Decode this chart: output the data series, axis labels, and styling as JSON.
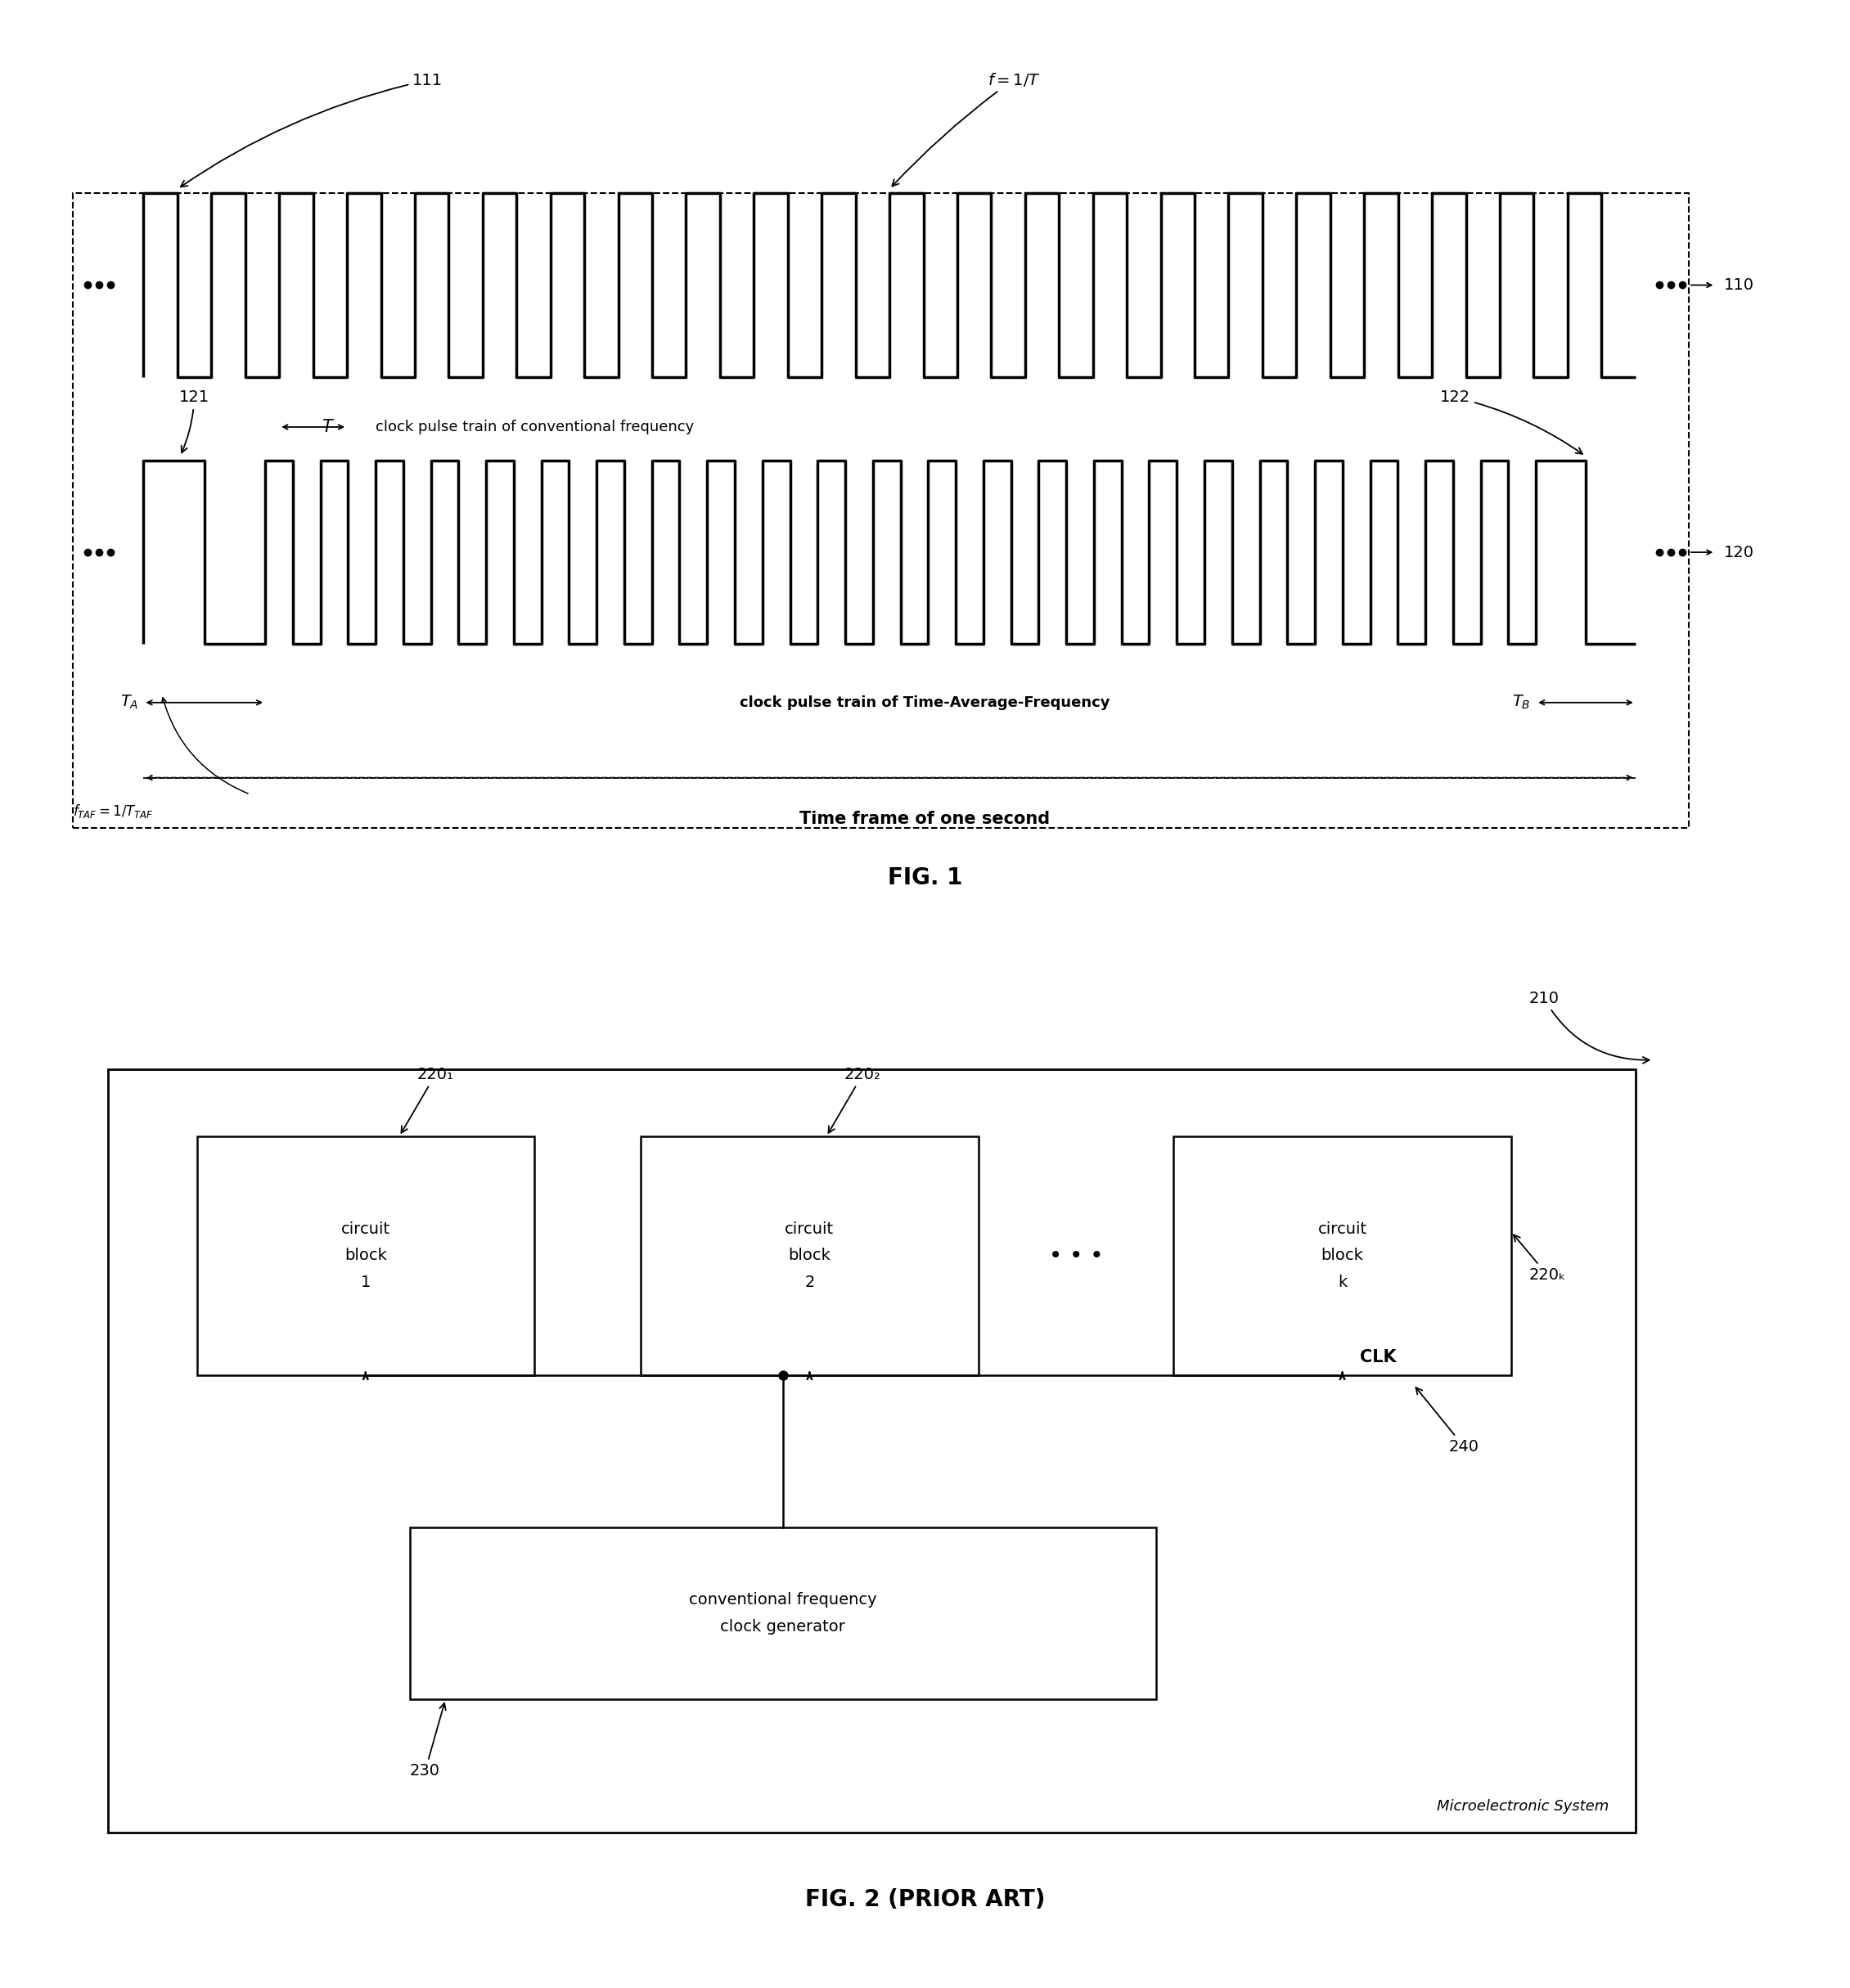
{
  "fig_width": 22.61,
  "fig_height": 24.3,
  "bg_color": "#ffffff",
  "fig1_title": "FIG. 1",
  "fig2_title": "FIG. 2 (PRIOR ART)",
  "label_110": "110",
  "label_111": "111",
  "label_120": "120",
  "label_121": "121",
  "label_122": "122",
  "label_210": "210",
  "label_220_1": "220₁",
  "label_220_2": "220₂",
  "label_220_k": "220ₖ",
  "label_230": "230",
  "label_240": "240",
  "text_clk_conv": "clock pulse train of conventional frequency",
  "text_clk_taf": "clock pulse train of Time-Average-Frequency",
  "text_timeframe": "Time frame of one second",
  "text_circuit_block_1": "circuit\nblock\n1",
  "text_circuit_block_2": "circuit\nblock\n2",
  "text_circuit_block_k": "circuit\nblock\nk",
  "text_clock_gen": "conventional frequency\nclock generator",
  "text_micro_system": "Microelectronic System"
}
